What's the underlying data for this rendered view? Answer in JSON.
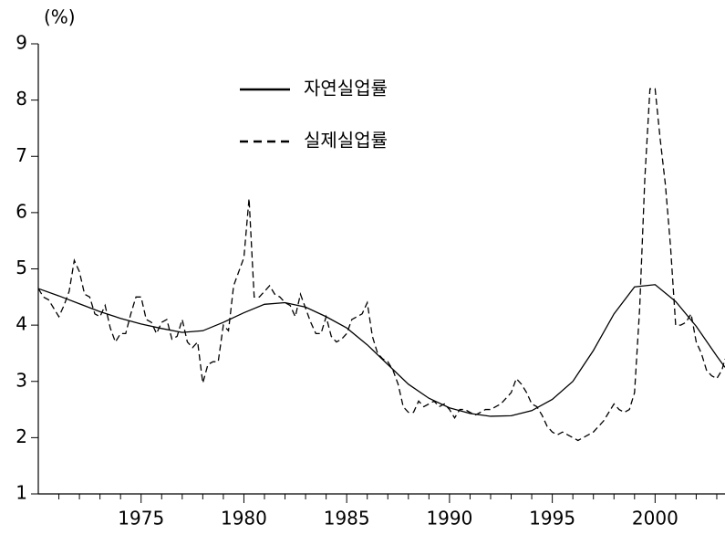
{
  "chart_data": {
    "type": "line",
    "y_unit_label": "(%)",
    "xlim": [
      1970,
      2003.4
    ],
    "ylim": [
      1,
      9
    ],
    "xticks": [
      1975,
      1980,
      1985,
      1990,
      1995,
      2000
    ],
    "xminorticks": [
      1971,
      1972,
      1973,
      1974,
      1976,
      1977,
      1978,
      1979,
      1981,
      1982,
      1983,
      1984,
      1986,
      1987,
      1988,
      1989,
      1991,
      1992,
      1993,
      1994,
      1996,
      1997,
      1998,
      1999,
      2001,
      2002,
      2003
    ],
    "yticks": [
      1,
      2,
      3,
      4,
      5,
      6,
      7,
      8,
      9
    ],
    "grid": false,
    "legend": "upper-center",
    "series": [
      {
        "name": "자연실업률",
        "color": "#000000",
        "line_style": "solid",
        "x": [
          1970,
          1971,
          1972,
          1973,
          1974,
          1975,
          1976,
          1977,
          1978,
          1979,
          1980,
          1981,
          1982,
          1983,
          1984,
          1985,
          1986,
          1987,
          1988,
          1989,
          1990,
          1991,
          1992,
          1993,
          1994,
          1995,
          1996,
          1997,
          1998,
          1999,
          2000,
          2001,
          2002,
          2003,
          2003.4
        ],
        "values": [
          4.65,
          4.52,
          4.38,
          4.24,
          4.12,
          4.02,
          3.94,
          3.87,
          3.9,
          4.05,
          4.22,
          4.37,
          4.4,
          4.32,
          4.15,
          3.95,
          3.65,
          3.3,
          2.95,
          2.7,
          2.53,
          2.43,
          2.38,
          2.39,
          2.48,
          2.68,
          3.0,
          3.55,
          4.2,
          4.68,
          4.72,
          4.42,
          3.98,
          3.45,
          3.25
        ]
      },
      {
        "name": "실제실업률",
        "color": "#000000",
        "line_style": "dashed",
        "x": [
          1970,
          1970.25,
          1970.5,
          1970.75,
          1971,
          1971.25,
          1971.5,
          1971.75,
          1972,
          1972.25,
          1972.5,
          1972.75,
          1973,
          1973.25,
          1973.5,
          1973.75,
          1974,
          1974.25,
          1974.5,
          1974.75,
          1975,
          1975.25,
          1975.5,
          1975.75,
          1976,
          1976.25,
          1976.5,
          1976.75,
          1977,
          1977.25,
          1977.5,
          1977.75,
          1978,
          1978.25,
          1978.5,
          1978.75,
          1979,
          1979.25,
          1979.5,
          1979.75,
          1980,
          1980.25,
          1980.5,
          1980.75,
          1981,
          1981.25,
          1981.5,
          1981.75,
          1982,
          1982.25,
          1982.5,
          1982.75,
          1983,
          1983.25,
          1983.5,
          1983.75,
          1984,
          1984.25,
          1984.5,
          1984.75,
          1985,
          1985.25,
          1985.5,
          1985.75,
          1986,
          1986.25,
          1986.5,
          1986.75,
          1987,
          1987.25,
          1987.5,
          1987.75,
          1988,
          1988.25,
          1988.5,
          1988.75,
          1989,
          1989.25,
          1989.5,
          1989.75,
          1990,
          1990.25,
          1990.5,
          1990.75,
          1991,
          1991.25,
          1991.5,
          1991.75,
          1992,
          1992.25,
          1992.5,
          1992.75,
          1993,
          1993.25,
          1993.5,
          1993.75,
          1994,
          1994.25,
          1994.5,
          1994.75,
          1995,
          1995.25,
          1995.5,
          1995.75,
          1996,
          1996.25,
          1996.5,
          1996.75,
          1997,
          1997.25,
          1997.5,
          1997.75,
          1998,
          1998.25,
          1998.5,
          1998.75,
          1999,
          1999.25,
          1999.5,
          1999.75,
          2000,
          2000.25,
          2000.5,
          2000.75,
          2001,
          2001.25,
          2001.5,
          2001.75,
          2002,
          2002.25,
          2002.5,
          2002.75,
          2003,
          2003.25,
          2003.4
        ],
        "values": [
          4.65,
          4.5,
          4.45,
          4.3,
          4.15,
          4.35,
          4.6,
          5.15,
          4.95,
          4.55,
          4.5,
          4.2,
          4.15,
          4.35,
          3.95,
          3.7,
          3.85,
          3.85,
          4.2,
          4.5,
          4.5,
          4.1,
          4.05,
          3.85,
          4.05,
          4.1,
          3.75,
          3.8,
          4.1,
          3.7,
          3.6,
          3.7,
          2.97,
          3.3,
          3.35,
          3.35,
          4.0,
          3.9,
          4.7,
          4.95,
          5.2,
          6.25,
          4.5,
          4.5,
          4.6,
          4.7,
          4.55,
          4.5,
          4.4,
          4.35,
          4.15,
          4.55,
          4.3,
          4.05,
          3.85,
          3.85,
          4.15,
          3.8,
          3.7,
          3.75,
          3.85,
          4.1,
          4.15,
          4.2,
          4.4,
          3.8,
          3.5,
          3.4,
          3.35,
          3.2,
          2.95,
          2.55,
          2.45,
          2.45,
          2.65,
          2.55,
          2.6,
          2.65,
          2.55,
          2.6,
          2.5,
          2.35,
          2.5,
          2.5,
          2.45,
          2.4,
          2.45,
          2.5,
          2.5,
          2.55,
          2.6,
          2.7,
          2.8,
          3.05,
          2.95,
          2.8,
          2.6,
          2.55,
          2.4,
          2.2,
          2.1,
          2.05,
          2.1,
          2.05,
          2.0,
          1.95,
          2.0,
          2.05,
          2.1,
          2.2,
          2.3,
          2.45,
          2.6,
          2.5,
          2.45,
          2.5,
          2.8,
          4.3,
          6.6,
          8.2,
          8.2,
          7.3,
          6.5,
          5.4,
          4.0,
          4.0,
          4.05,
          4.2,
          3.7,
          3.5,
          3.2,
          3.1,
          3.05,
          3.2,
          3.4
        ]
      }
    ]
  }
}
